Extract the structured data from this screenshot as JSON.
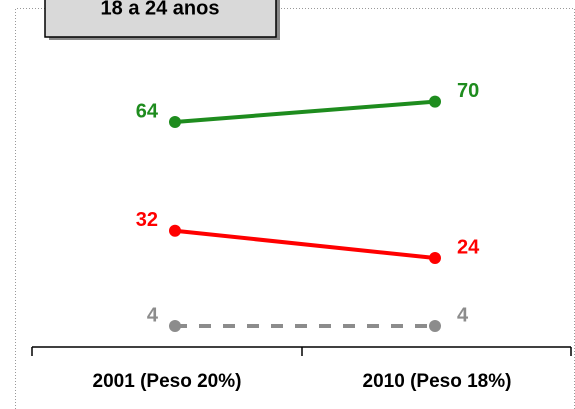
{
  "chart_data": {
    "type": "line",
    "title": "18 a 24 anos",
    "categories": [
      "2001 (Peso 20%)",
      "2010 (Peso 18%)"
    ],
    "series": [
      {
        "color": "#1e8c1e",
        "values": [
          64,
          70
        ]
      },
      {
        "color": "#ff0000",
        "values": [
          32,
          24
        ]
      },
      {
        "color": "#8c8c8c",
        "values": [
          4,
          4
        ],
        "dashed": true
      }
    ]
  }
}
